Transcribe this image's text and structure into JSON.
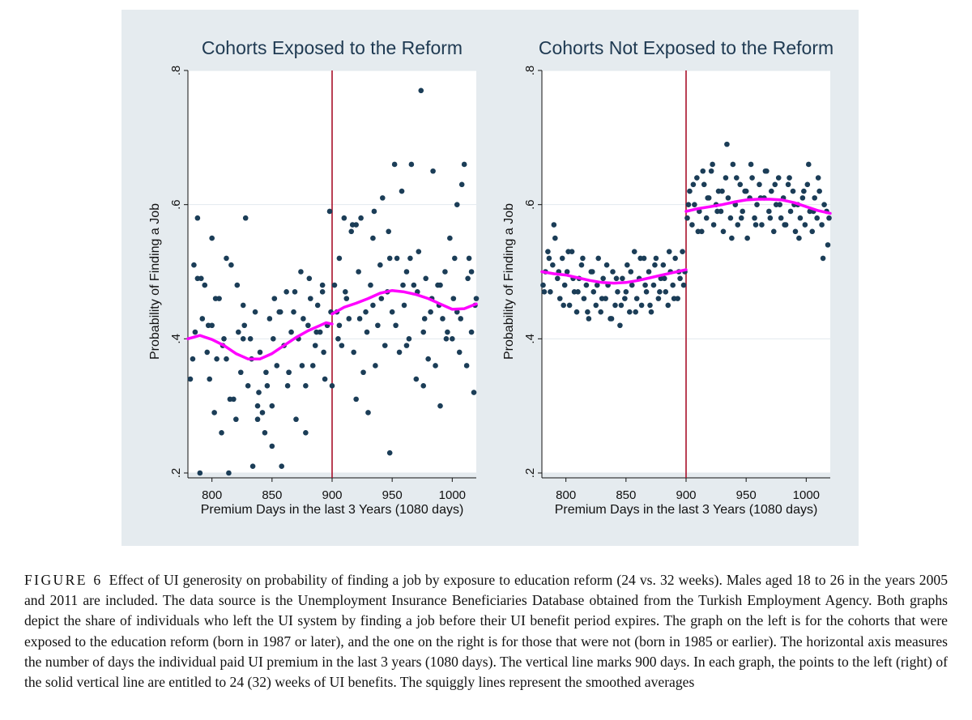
{
  "chart_data": [
    {
      "type": "scatter",
      "title": "Cohorts Exposed to the Reform",
      "xlabel": "Premium Days in the last 3 Years (1080 days)",
      "ylabel": "Probability of Finding a Job",
      "xlim": [
        780,
        1020
      ],
      "ylim": [
        0.2,
        0.8
      ],
      "xticks": [
        800,
        850,
        900,
        950,
        1000
      ],
      "xtick_labels": [
        "800",
        "850",
        "900",
        "950",
        "1000"
      ],
      "yticks": [
        0.2,
        0.4,
        0.6,
        0.8
      ],
      "ytick_labels": [
        ".2",
        ".4",
        ".6",
        ".8"
      ],
      "vline": 900,
      "grid": "horizontal",
      "colors": {
        "points": "#1b3d57",
        "smooth": "#ff00ff",
        "vline": "#a8102a"
      },
      "series": [
        {
          "kind": "points",
          "x": [
            782,
            784,
            786,
            788,
            790,
            792,
            794,
            796,
            798,
            800,
            802,
            804,
            806,
            808,
            810,
            812,
            814,
            816,
            818,
            820,
            822,
            824,
            826,
            828,
            830,
            832,
            834,
            836,
            838,
            840,
            842,
            844,
            846,
            848,
            850,
            852,
            854,
            856,
            858,
            860,
            862,
            864,
            866,
            868,
            870,
            872,
            874,
            876,
            878,
            880,
            882,
            884,
            886,
            888,
            890,
            892,
            894,
            896,
            898,
            900,
            902,
            904,
            906,
            908,
            910,
            912,
            914,
            916,
            918,
            920,
            922,
            924,
            926,
            928,
            930,
            932,
            934,
            936,
            938,
            940,
            942,
            944,
            946,
            948,
            950,
            952,
            954,
            956,
            958,
            960,
            962,
            964,
            966,
            968,
            970,
            972,
            974,
            976,
            978,
            980,
            982,
            984,
            986,
            988,
            990,
            992,
            994,
            996,
            998,
            1000,
            1002,
            1004,
            1006,
            1008,
            1010,
            1012,
            1014,
            1016,
            1018,
            1020,
            785,
            791,
            797,
            803,
            809,
            815,
            821,
            827,
            833,
            839,
            845,
            851,
            857,
            863,
            869,
            875,
            881,
            887,
            893,
            899,
            905,
            911,
            917,
            923,
            929,
            935,
            941,
            947,
            953,
            959,
            965,
            971,
            977,
            983,
            989,
            995,
            1001,
            1007,
            1013,
            1019,
            788,
            800,
            812,
            826,
            838,
            850,
            864,
            878,
            892,
            906,
            920,
            934,
            948,
            962,
            976,
            990,
            1004,
            1016
          ],
          "y": [
            0.34,
            0.37,
            0.41,
            0.49,
            0.2,
            0.43,
            0.48,
            0.38,
            0.34,
            0.42,
            0.29,
            0.37,
            0.46,
            0.26,
            0.4,
            0.37,
            0.2,
            0.51,
            0.31,
            0.28,
            0.41,
            0.35,
            0.45,
            0.58,
            0.33,
            0.4,
            0.21,
            0.44,
            0.3,
            0.38,
            0.29,
            0.26,
            0.33,
            0.43,
            0.24,
            0.46,
            0.36,
            0.44,
            0.21,
            0.39,
            0.47,
            0.35,
            0.41,
            0.44,
            0.28,
            0.4,
            0.5,
            0.43,
            0.33,
            0.42,
            0.46,
            0.36,
            0.39,
            0.45,
            0.41,
            0.47,
            0.34,
            0.42,
            0.59,
            0.33,
            0.48,
            0.44,
            0.52,
            0.39,
            0.58,
            0.46,
            0.43,
            0.56,
            0.38,
            0.31,
            0.5,
            0.58,
            0.35,
            0.44,
            0.29,
            0.48,
            0.55,
            0.36,
            0.42,
            0.51,
            0.61,
            0.39,
            0.47,
            0.23,
            0.44,
            0.66,
            0.52,
            0.38,
            0.62,
            0.45,
            0.5,
            0.4,
            0.66,
            0.48,
            0.34,
            0.53,
            0.77,
            0.41,
            0.49,
            0.37,
            0.44,
            0.65,
            0.36,
            0.48,
            0.3,
            0.43,
            0.5,
            0.41,
            0.55,
            0.4,
            0.52,
            0.44,
            0.38,
            0.63,
            0.66,
            0.36,
            0.52,
            0.41,
            0.32,
            0.46,
            0.51,
            0.49,
            0.42,
            0.46,
            0.39,
            0.31,
            0.48,
            0.42,
            0.37,
            0.32,
            0.35,
            0.4,
            0.44,
            0.33,
            0.47,
            0.36,
            0.49,
            0.41,
            0.38,
            0.44,
            0.4,
            0.47,
            0.57,
            0.43,
            0.41,
            0.59,
            0.46,
            0.56,
            0.42,
            0.48,
            0.52,
            0.47,
            0.43,
            0.46,
            0.45,
            0.4,
            0.46,
            0.43,
            0.49,
            0.45,
            0.58,
            0.55,
            0.52,
            0.4,
            0.28,
            0.3,
            0.35,
            0.26,
            0.48,
            0.42,
            0.57,
            0.45,
            0.52,
            0.39,
            0.33,
            0.48,
            0.6,
            0.5
          ]
        },
        {
          "kind": "smooth",
          "segments": [
            {
              "x": [
                780,
                790,
                800,
                810,
                820,
                830,
                840,
                850,
                860,
                870,
                880,
                890,
                895,
                900
              ],
              "y": [
                0.4,
                0.405,
                0.399,
                0.39,
                0.378,
                0.37,
                0.37,
                0.378,
                0.39,
                0.402,
                0.412,
                0.42,
                0.424,
                0.422
              ]
            },
            {
              "x": [
                900,
                910,
                920,
                930,
                940,
                950,
                960,
                970,
                980,
                990,
                1000,
                1010,
                1020
              ],
              "y": [
                0.437,
                0.447,
                0.453,
                0.46,
                0.468,
                0.472,
                0.47,
                0.466,
                0.46,
                0.452,
                0.444,
                0.445,
                0.452
              ]
            }
          ]
        }
      ]
    },
    {
      "type": "scatter",
      "title": "Cohorts Not Exposed to the Reform",
      "xlabel": "Premium Days in the last 3 Years (1080 days)",
      "ylabel": "Probability of Finding a Job",
      "xlim": [
        780,
        1020
      ],
      "ylim": [
        0.2,
        0.8
      ],
      "xticks": [
        800,
        850,
        900,
        950,
        1000
      ],
      "xtick_labels": [
        "800",
        "850",
        "900",
        "950",
        "1000"
      ],
      "yticks": [
        0.2,
        0.4,
        0.6,
        0.8
      ],
      "ytick_labels": [
        ".2",
        ".4",
        ".6",
        ".8"
      ],
      "vline": 900,
      "grid": "horizontal",
      "colors": {
        "points": "#1b3d57",
        "smooth": "#ff00ff",
        "vline": "#a8102a"
      },
      "series": [
        {
          "kind": "points",
          "x": [
            781,
            783,
            785,
            787,
            789,
            791,
            793,
            795,
            797,
            799,
            801,
            803,
            805,
            807,
            809,
            811,
            813,
            815,
            817,
            819,
            821,
            823,
            825,
            827,
            829,
            831,
            833,
            835,
            837,
            839,
            841,
            843,
            845,
            847,
            849,
            851,
            853,
            855,
            857,
            859,
            861,
            863,
            865,
            867,
            869,
            871,
            873,
            875,
            877,
            879,
            881,
            883,
            885,
            887,
            889,
            891,
            893,
            895,
            897,
            899,
            782,
            786,
            790,
            794,
            798,
            802,
            806,
            810,
            814,
            818,
            822,
            826,
            830,
            834,
            838,
            842,
            846,
            850,
            854,
            858,
            862,
            866,
            870,
            874,
            878,
            882,
            886,
            890,
            894,
            898,
            901,
            903,
            905,
            907,
            909,
            911,
            913,
            915,
            917,
            919,
            921,
            923,
            925,
            927,
            929,
            931,
            933,
            935,
            937,
            939,
            941,
            943,
            945,
            947,
            949,
            951,
            953,
            955,
            957,
            959,
            961,
            963,
            965,
            967,
            969,
            971,
            973,
            975,
            977,
            979,
            981,
            983,
            985,
            987,
            989,
            991,
            993,
            995,
            997,
            999,
            1001,
            1003,
            1005,
            1007,
            1009,
            1011,
            1013,
            1015,
            1017,
            1019,
            902,
            906,
            910,
            914,
            918,
            922,
            926,
            930,
            934,
            938,
            942,
            946,
            950,
            954,
            958,
            962,
            966,
            970,
            974,
            978,
            982,
            986,
            990,
            994,
            998,
            1002,
            1006,
            1010,
            1014,
            1018
          ],
          "y": [
            0.48,
            0.5,
            0.53,
            0.47,
            0.51,
            0.55,
            0.49,
            0.46,
            0.52,
            0.48,
            0.5,
            0.45,
            0.53,
            0.47,
            0.44,
            0.49,
            0.51,
            0.46,
            0.48,
            0.43,
            0.5,
            0.47,
            0.45,
            0.52,
            0.44,
            0.49,
            0.46,
            0.48,
            0.43,
            0.5,
            0.45,
            0.47,
            0.42,
            0.49,
            0.46,
            0.51,
            0.44,
            0.48,
            0.53,
            0.46,
            0.49,
            0.45,
            0.52,
            0.47,
            0.5,
            0.44,
            0.48,
            0.52,
            0.46,
            0.49,
            0.51,
            0.47,
            0.45,
            0.5,
            0.48,
            0.52,
            0.46,
            0.49,
            0.53,
            0.5,
            0.47,
            0.52,
            0.57,
            0.5,
            0.45,
            0.53,
            0.49,
            0.47,
            0.52,
            0.44,
            0.5,
            0.48,
            0.46,
            0.51,
            0.43,
            0.49,
            0.45,
            0.47,
            0.5,
            0.44,
            0.52,
            0.48,
            0.45,
            0.51,
            0.47,
            0.49,
            0.53,
            0.46,
            0.5,
            0.48,
            0.58,
            0.62,
            0.57,
            0.6,
            0.64,
            0.59,
            0.56,
            0.63,
            0.58,
            0.61,
            0.65,
            0.57,
            0.6,
            0.62,
            0.59,
            0.56,
            0.64,
            0.61,
            0.58,
            0.66,
            0.6,
            0.57,
            0.63,
            0.59,
            0.62,
            0.55,
            0.61,
            0.64,
            0.58,
            0.6,
            0.63,
            0.57,
            0.61,
            0.65,
            0.59,
            0.62,
            0.56,
            0.6,
            0.64,
            0.58,
            0.61,
            0.57,
            0.63,
            0.59,
            0.62,
            0.56,
            0.6,
            0.58,
            0.61,
            0.57,
            0.63,
            0.59,
            0.56,
            0.61,
            0.58,
            0.62,
            0.57,
            0.6,
            0.59,
            0.58,
            0.6,
            0.63,
            0.56,
            0.65,
            0.61,
            0.66,
            0.59,
            0.62,
            0.69,
            0.55,
            0.64,
            0.58,
            0.62,
            0.66,
            0.57,
            0.61,
            0.65,
            0.58,
            0.63,
            0.6,
            0.57,
            0.64,
            0.6,
            0.55,
            0.62,
            0.66,
            0.59,
            0.64,
            0.52,
            0.54
          ]
        },
        {
          "kind": "smooth",
          "segments": [
            {
              "x": [
                780,
                790,
                800,
                810,
                820,
                830,
                840,
                850,
                860,
                870,
                880,
                890,
                900
              ],
              "y": [
                0.5,
                0.497,
                0.495,
                0.491,
                0.487,
                0.484,
                0.483,
                0.484,
                0.487,
                0.491,
                0.495,
                0.499,
                0.503
              ]
            },
            {
              "x": [
                900,
                910,
                920,
                930,
                940,
                950,
                960,
                970,
                980,
                990,
                1000,
                1010,
                1020
              ],
              "y": [
                0.59,
                0.594,
                0.597,
                0.6,
                0.604,
                0.607,
                0.608,
                0.608,
                0.607,
                0.603,
                0.597,
                0.591,
                0.587
              ]
            }
          ]
        }
      ]
    }
  ],
  "caption": {
    "label": "FIGURE 6",
    "text": "Effect of UI generosity on probability of finding a job by exposure to education reform (24 vs. 32 weeks). Males aged 18 to 26 in the years 2005 and 2011 are included. The data source is the Unemployment Insurance Beneficiaries Database obtained from the Turkish Employment Agency. Both graphs depict the share of individuals who left the UI system by finding a job before their UI benefit period expires. The graph on the left is for the cohorts that were exposed to the education reform (born in 1987 or later), and the one on the right is for those that were not (born in 1985 or earlier). The horizontal axis measures the number of days the individual paid UI premium in the last 3 years (1080 days). The vertical line marks 900 days. In each graph, the points to the left (right) of the solid vertical line are entitled to 24 (32) weeks of UI benefits. The squiggly lines represent the smoothed averages"
  }
}
